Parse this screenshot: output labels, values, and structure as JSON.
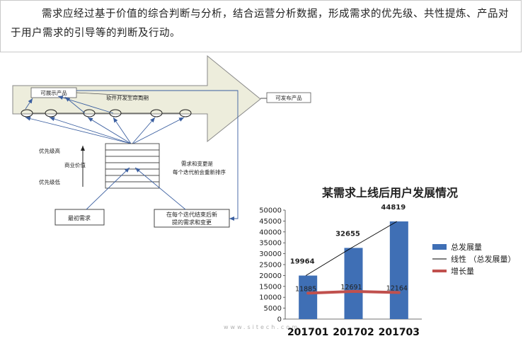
{
  "paragraph": "需求应经过基于价值的综合判断与分析，结合运营分析数据，形成需求的优先级、共性提炼、产品对于用户需求的引导等的判断及行动。",
  "diagram": {
    "deployable_product": "可展示产品",
    "lifecycle": "软件开发生命周期",
    "releasable_product": "可发布产品",
    "priority_high": "优先级高",
    "business_value": "商业价值",
    "priority_low": "优先级低",
    "change_note_line1": "需求和变更是",
    "change_note_line2": "每个迭代前会重新排序",
    "initial_requirements": "最初需求",
    "new_requirements_line1": "在每个迭代结束后新",
    "new_requirements_line2": "提的需求和变更"
  },
  "watermark": "www.sitech.com",
  "chart_data": {
    "type": "bar",
    "title": "某需求上线后用户发展情况",
    "categories": [
      "201701",
      "201702",
      "201703"
    ],
    "series": [
      {
        "name": "总发展量",
        "type": "bar",
        "values": [
          19964,
          32655,
          44819
        ],
        "color": "#3f6fb5"
      },
      {
        "name": "线性 （总发展量）",
        "type": "line",
        "values": [
          19964,
          32655,
          44819
        ],
        "color": "#000000"
      },
      {
        "name": "增长量",
        "type": "line",
        "values": [
          11885,
          12691,
          12164
        ],
        "color": "#c0504d"
      }
    ],
    "ylim": [
      0,
      50000
    ],
    "yticks": [
      "0",
      "5000",
      "10000",
      "15000",
      "20000",
      "25000",
      "30000",
      "35000",
      "40000",
      "45000",
      "50000"
    ],
    "legend": "right"
  }
}
